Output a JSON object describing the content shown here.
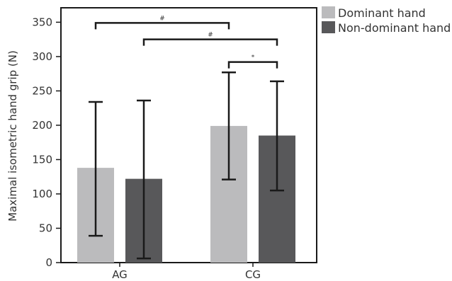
{
  "chart_data": {
    "type": "bar",
    "categories": [
      "AG",
      "CG"
    ],
    "ylabel": "Maximal isometric hand grip (N)",
    "xlabel": "",
    "ylim": [
      0,
      370
    ],
    "yticks": [
      0,
      50,
      100,
      150,
      200,
      250,
      300,
      350
    ],
    "grid": false,
    "legend_position": "top-right",
    "series": [
      {
        "name": "Dominant hand",
        "color": "#bbbbbd",
        "values": [
          138,
          199
        ],
        "error": [
          {
            "low": 39,
            "high": 234
          },
          {
            "low": 121,
            "high": 277
          }
        ]
      },
      {
        "name": "Non-dominant hand",
        "color": "#58585a",
        "values": [
          122,
          185
        ],
        "error": [
          {
            "low": 6,
            "high": 236
          },
          {
            "low": 105,
            "high": 264
          }
        ]
      }
    ],
    "annotations": [
      {
        "label": "#",
        "from": [
          0,
          0
        ],
        "to": [
          1,
          0
        ],
        "y": 349
      },
      {
        "label": "#",
        "from": [
          0,
          1
        ],
        "to": [
          1,
          1
        ],
        "y": 325
      },
      {
        "label": "*",
        "from": [
          1,
          0
        ],
        "to": [
          1,
          1
        ],
        "y": 292
      }
    ]
  }
}
